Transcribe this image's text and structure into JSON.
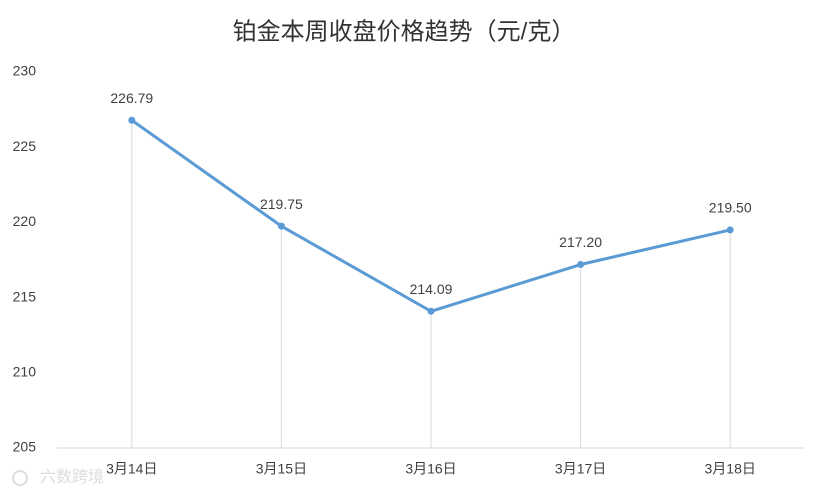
{
  "chart_data": {
    "type": "line",
    "title": "铂金本周收盘价格趋势（元/克）",
    "categories": [
      "3月14日",
      "3月15日",
      "3月16日",
      "3月17日",
      "3月18日"
    ],
    "values": [
      226.79,
      219.75,
      214.09,
      217.2,
      219.5
    ],
    "value_labels": [
      "226.79",
      "219.75",
      "214.09",
      "217.20",
      "219.50"
    ],
    "color": "#5b9bd5",
    "ylim": [
      205,
      230
    ],
    "yticks": [
      205,
      210,
      215,
      220,
      225,
      230
    ],
    "grid": false,
    "drop_lines": true,
    "watermark": "六数跨境"
  }
}
